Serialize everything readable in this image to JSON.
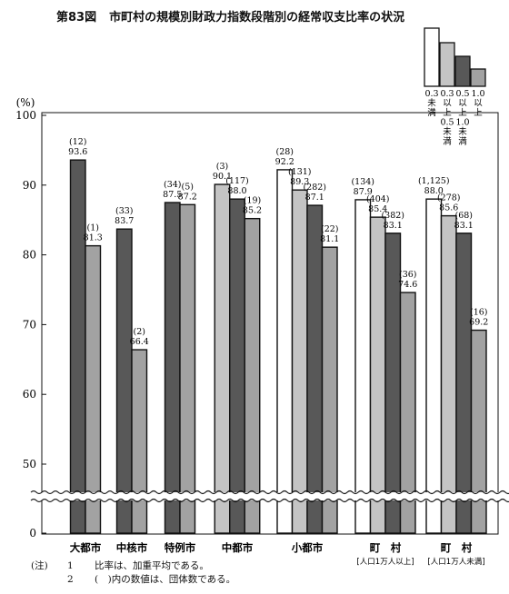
{
  "title": {
    "figure_number": "第83図",
    "text": "市町村の規模別財政力指数段階別の経常収支比率の状況"
  },
  "colors": {
    "white_fill": "#ffffff",
    "light_gray": "#c4c4c4",
    "dark_gray": "#585858",
    "medium_gray": "#a2a2a2",
    "stroke": "#111111"
  },
  "chart_data": {
    "type": "bar",
    "title": "市町村の規模別財政力指数段階別の経常収支比率の状況",
    "ylabel": "(%)",
    "ylim": [
      0,
      100
    ],
    "axis_break": "between 0 and 50",
    "y_ticks": [
      "0",
      "50",
      "60",
      "70",
      "80",
      "90",
      "100"
    ],
    "legend": {
      "placement": "top-right",
      "entries": [
        {
          "key": "lt03",
          "lines": [
            "0.3",
            "未",
            "満"
          ]
        },
        {
          "key": "03to05",
          "lines": [
            "0.3",
            "以",
            "上",
            "0.5",
            "未",
            "満"
          ]
        },
        {
          "key": "05to10",
          "lines": [
            "0.5",
            "以",
            "上",
            "1.0",
            "未",
            "満"
          ]
        },
        {
          "key": "ge10",
          "lines": [
            "1.0",
            "以",
            "上"
          ]
        }
      ]
    },
    "categories": [
      {
        "label": "大都市",
        "sublabel": "",
        "bars": [
          {
            "series": "05to10",
            "value": 93.6,
            "value_label": "93.6",
            "count": "(12)"
          },
          {
            "series": "ge10",
            "value": 81.3,
            "value_label": "81.3",
            "count": "(1)"
          }
        ]
      },
      {
        "label": "中核市",
        "sublabel": "",
        "bars": [
          {
            "series": "05to10",
            "value": 83.7,
            "value_label": "83.7",
            "count": "(33)"
          },
          {
            "series": "ge10",
            "value": 66.4,
            "value_label": "66.4",
            "count": "(2)"
          }
        ]
      },
      {
        "label": "特例市",
        "sublabel": "",
        "bars": [
          {
            "series": "05to10",
            "value": 87.5,
            "value_label": "87.5",
            "count": "(34)"
          },
          {
            "series": "ge10",
            "value": 87.2,
            "value_label": "87.2",
            "count": "(5)"
          }
        ]
      },
      {
        "label": "中都市",
        "sublabel": "",
        "bars": [
          {
            "series": "03to05",
            "value": 90.1,
            "value_label": "90.1",
            "count": "(3)"
          },
          {
            "series": "05to10",
            "value": 88.0,
            "value_label": "88.0",
            "count": "(117)"
          },
          {
            "series": "ge10",
            "value": 85.2,
            "value_label": "85.2",
            "count": "(19)"
          }
        ]
      },
      {
        "label": "小都市",
        "sublabel": "",
        "bars": [
          {
            "series": "lt03",
            "value": 92.2,
            "value_label": "92.2",
            "count": "(28)"
          },
          {
            "series": "03to05",
            "value": 89.3,
            "value_label": "89.3",
            "count": "(131)"
          },
          {
            "series": "05to10",
            "value": 87.1,
            "value_label": "87.1",
            "count": "(282)"
          },
          {
            "series": "ge10",
            "value": 81.1,
            "value_label": "81.1",
            "count": "(22)"
          }
        ]
      },
      {
        "label": "町　村",
        "sublabel": "[人口1万人以上]",
        "bars": [
          {
            "series": "lt03",
            "value": 87.9,
            "value_label": "87.9",
            "count": "(134)"
          },
          {
            "series": "03to05",
            "value": 85.4,
            "value_label": "85.4",
            "count": "(404)"
          },
          {
            "series": "05to10",
            "value": 83.1,
            "value_label": "83.1",
            "count": "(382)"
          },
          {
            "series": "ge10",
            "value": 74.6,
            "value_label": "74.6",
            "count": "(36)"
          }
        ]
      },
      {
        "label": "町　村",
        "sublabel": "[人口1万人未満]",
        "bars": [
          {
            "series": "lt03",
            "value": 88.0,
            "value_label": "88.0",
            "count": "(1,125)"
          },
          {
            "series": "03to05",
            "value": 85.6,
            "value_label": "85.6",
            "count": "(278)"
          },
          {
            "series": "05to10",
            "value": 83.1,
            "value_label": "83.1",
            "count": "(68)"
          },
          {
            "series": "ge10",
            "value": 69.2,
            "value_label": "69.2",
            "count": "(16)"
          }
        ]
      }
    ]
  },
  "notes": {
    "label": "(注)",
    "items": [
      {
        "index": "1",
        "text": "比率は、加重平均である。"
      },
      {
        "index": "2",
        "text": "(　)内の数値は、団体数である。"
      }
    ]
  }
}
